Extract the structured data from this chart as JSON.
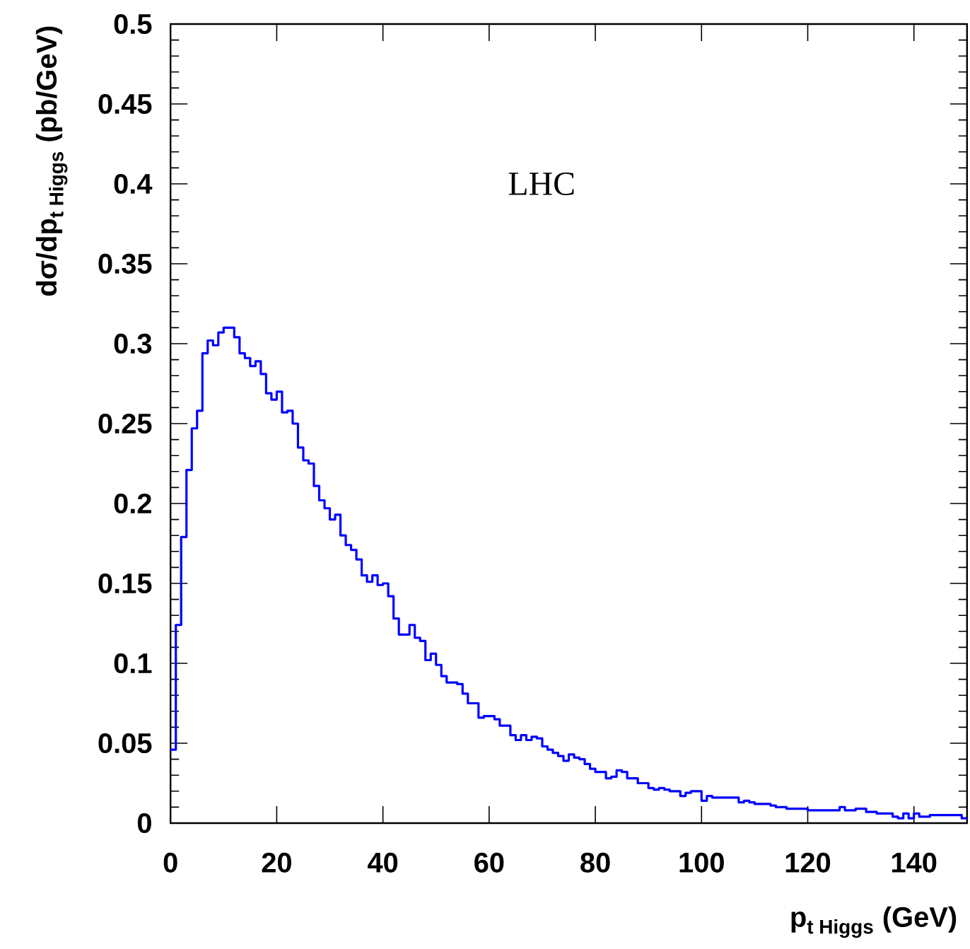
{
  "chart_data": {
    "type": "histogram",
    "xlabel": "\\text{p}_{\\text{t Higgs}}\\text{ (GeV)}",
    "ylabel": "\\text{dσ/dp}_{\\text{t Higgs}}\\text{ (pb/GeV)}",
    "annotations": [
      "LHC"
    ],
    "color": "#0000ff",
    "bins": [
      0,
      1,
      2,
      3,
      4,
      5,
      6,
      7,
      8,
      9,
      10,
      11,
      12,
      13,
      14,
      15,
      16,
      17,
      18,
      19,
      20,
      21,
      22,
      23,
      24,
      25,
      26,
      27,
      28,
      29,
      30,
      31,
      32,
      33,
      34,
      35,
      36,
      37,
      38,
      39,
      40,
      41,
      42,
      43,
      44,
      45,
      46,
      47,
      48,
      49,
      50,
      51,
      52,
      53,
      54,
      55,
      56,
      57,
      58,
      59,
      60,
      61,
      62,
      63,
      64,
      65,
      66,
      67,
      68,
      69,
      70,
      71,
      72,
      73,
      74,
      75,
      76,
      77,
      78,
      79,
      80,
      81,
      82,
      83,
      84,
      85,
      86,
      87,
      88,
      89,
      90,
      91,
      92,
      93,
      94,
      95,
      96,
      97,
      98,
      99,
      100,
      101,
      102,
      103,
      104,
      105,
      106,
      107,
      108,
      109,
      110,
      111,
      112,
      113,
      114,
      115,
      116,
      117,
      118,
      119,
      120,
      121,
      122,
      123,
      124,
      125,
      126,
      127,
      128,
      129,
      130,
      131,
      132,
      133,
      134,
      135,
      136,
      137,
      138,
      139,
      140,
      141,
      142,
      143,
      144,
      145,
      146,
      147,
      148,
      149,
      150
    ],
    "values": [
      0.046,
      0.124,
      0.179,
      0.221,
      0.247,
      0.258,
      0.294,
      0.302,
      0.299,
      0.307,
      0.31,
      0.31,
      0.304,
      0.294,
      0.291,
      0.286,
      0.289,
      0.281,
      0.269,
      0.265,
      0.27,
      0.257,
      0.258,
      0.25,
      0.235,
      0.227,
      0.225,
      0.211,
      0.202,
      0.197,
      0.19,
      0.193,
      0.18,
      0.174,
      0.171,
      0.165,
      0.155,
      0.151,
      0.155,
      0.149,
      0.15,
      0.142,
      0.128,
      0.118,
      0.118,
      0.124,
      0.116,
      0.114,
      0.102,
      0.106,
      0.099,
      0.092,
      0.088,
      0.088,
      0.087,
      0.081,
      0.075,
      0.075,
      0.066,
      0.067,
      0.067,
      0.065,
      0.061,
      0.061,
      0.055,
      0.052,
      0.055,
      0.052,
      0.054,
      0.053,
      0.048,
      0.046,
      0.044,
      0.042,
      0.039,
      0.043,
      0.041,
      0.04,
      0.037,
      0.034,
      0.032,
      0.032,
      0.028,
      0.029,
      0.033,
      0.032,
      0.028,
      0.028,
      0.025,
      0.025,
      0.022,
      0.021,
      0.022,
      0.021,
      0.02,
      0.02,
      0.017,
      0.019,
      0.02,
      0.02,
      0.014,
      0.017,
      0.016,
      0.016,
      0.016,
      0.016,
      0.016,
      0.013,
      0.014,
      0.013,
      0.012,
      0.012,
      0.012,
      0.011,
      0.01,
      0.01,
      0.009,
      0.009,
      0.009,
      0.009,
      0.008,
      0.008,
      0.008,
      0.008,
      0.008,
      0.008,
      0.01,
      0.008,
      0.008,
      0.009,
      0.009,
      0.007,
      0.007,
      0.006,
      0.006,
      0.006,
      0.004,
      0.003,
      0.006,
      0.003,
      0.006,
      0.004,
      0.004,
      0.005,
      0.005,
      0.005,
      0.005,
      0.005,
      0.005,
      0.003
    ],
    "xlim": [
      0,
      150
    ],
    "ylim": [
      0,
      0.5
    ],
    "xticks": [
      0,
      20,
      40,
      60,
      80,
      100,
      120,
      140
    ],
    "yticks": [
      0,
      0.05,
      0.1,
      0.15,
      0.2,
      0.25,
      0.3,
      0.35,
      0.4,
      0.45,
      0.5
    ]
  }
}
